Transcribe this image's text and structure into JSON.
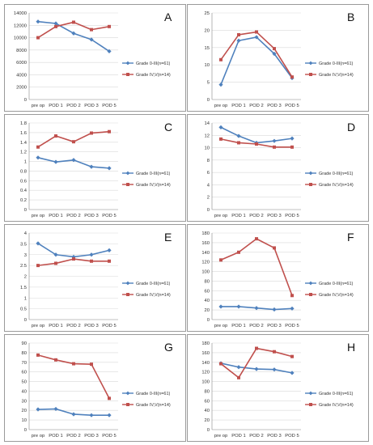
{
  "colors": {
    "series1": "#4f81bd",
    "series2": "#c0504d",
    "grid": "#d9d9d9",
    "axis": "#868686"
  },
  "chart_data": [
    {
      "type": "line",
      "panel_label": "A",
      "categories": [
        "pre op",
        "POD 1",
        "POD 2",
        "POD 3",
        "POD 5"
      ],
      "ylim": [
        0,
        14000
      ],
      "yticks": [
        0,
        2000,
        4000,
        6000,
        8000,
        10000,
        12000,
        14000
      ],
      "legend_position": "right",
      "grid": true,
      "series": [
        {
          "name": "Grade 0-III(n=61)",
          "values": [
            12600,
            12300,
            10700,
            9700,
            7800
          ]
        },
        {
          "name": "Grade IV,V(n=14)",
          "values": [
            10000,
            11800,
            12500,
            11300,
            11800
          ]
        }
      ]
    },
    {
      "type": "line",
      "panel_label": "B",
      "categories": [
        "pre op",
        "POD 1",
        "POD 2",
        "POD 3",
        "POD 5"
      ],
      "ylim": [
        0,
        25
      ],
      "yticks": [
        0,
        5,
        10,
        15,
        20,
        25
      ],
      "legend_position": "right",
      "grid": true,
      "series": [
        {
          "name": "Grade 0-III(n=61)",
          "values": [
            4.3,
            17.0,
            18.0,
            13.2,
            6.2
          ]
        },
        {
          "name": "Grade IV,V(n=14)",
          "values": [
            11.5,
            18.7,
            19.5,
            14.7,
            6.5
          ]
        }
      ]
    },
    {
      "type": "line",
      "panel_label": "C",
      "categories": [
        "pre op",
        "POD 1",
        "POD 2",
        "POD 3",
        "POD 5"
      ],
      "ylim": [
        0,
        1.8
      ],
      "yticks": [
        0,
        0.2,
        0.4,
        0.6,
        0.8,
        1,
        1.2,
        1.4,
        1.6,
        1.8
      ],
      "legend_position": "right",
      "grid": true,
      "series": [
        {
          "name": "Grade 0-III(n=61)",
          "values": [
            1.08,
            0.99,
            1.03,
            0.89,
            0.86
          ]
        },
        {
          "name": "Grade IV,V(n=14)",
          "values": [
            1.3,
            1.53,
            1.41,
            1.59,
            1.62
          ]
        }
      ]
    },
    {
      "type": "line",
      "panel_label": "D",
      "categories": [
        "pre op",
        "POD 1",
        "POD 2",
        "POD 3",
        "POD 5"
      ],
      "ylim": [
        0,
        14
      ],
      "yticks": [
        0,
        2,
        4,
        6,
        8,
        10,
        12,
        14
      ],
      "legend_position": "right",
      "grid": true,
      "series": [
        {
          "name": "Grade 0-III(n=61)",
          "values": [
            13.3,
            11.9,
            10.8,
            11.1,
            11.5
          ]
        },
        {
          "name": "Grade IV,V(n=14)",
          "values": [
            11.4,
            10.8,
            10.6,
            10.1,
            10.1
          ]
        }
      ]
    },
    {
      "type": "line",
      "panel_label": "E",
      "categories": [
        "pre op",
        "POD 1",
        "POD 2",
        "POD 3",
        "POD 5"
      ],
      "ylim": [
        0,
        4
      ],
      "yticks": [
        0,
        0.5,
        1,
        1.5,
        2,
        2.5,
        3,
        3.5,
        4
      ],
      "legend_position": "right",
      "grid": true,
      "series": [
        {
          "name": "Grade 0-III(n=61)",
          "values": [
            3.52,
            3.0,
            2.9,
            3.0,
            3.2
          ]
        },
        {
          "name": "Grade IV,V(n=14)",
          "values": [
            2.5,
            2.6,
            2.8,
            2.7,
            2.7
          ]
        }
      ]
    },
    {
      "type": "line",
      "panel_label": "F",
      "categories": [
        "pre op",
        "POD 1",
        "POD 2",
        "POD 3",
        "POD 5"
      ],
      "ylim": [
        0,
        180
      ],
      "yticks": [
        0,
        20,
        40,
        60,
        80,
        100,
        120,
        140,
        160,
        180
      ],
      "legend_position": "right",
      "grid": true,
      "series": [
        {
          "name": "Grade 0-III(n=61)",
          "values": [
            27,
            27,
            24,
            21,
            23
          ]
        },
        {
          "name": "Grade IV,V(n=14)",
          "values": [
            124,
            140,
            168,
            149,
            50
          ]
        }
      ]
    },
    {
      "type": "line",
      "panel_label": "G",
      "categories": [
        "pre op",
        "POD 1",
        "POD 2",
        "POD 3",
        "POD 5"
      ],
      "ylim": [
        0,
        90
      ],
      "yticks": [
        0,
        10,
        20,
        30,
        40,
        50,
        60,
        70,
        80,
        90
      ],
      "legend_position": "right",
      "grid": true,
      "series": [
        {
          "name": "Grade 0-III(n=61)",
          "values": [
            21,
            21.5,
            16,
            15,
            15
          ]
        },
        {
          "name": "Grade IV,V(n=14)",
          "values": [
            77.5,
            72.5,
            68.5,
            68,
            32.5
          ]
        }
      ]
    },
    {
      "type": "line",
      "panel_label": "H",
      "categories": [
        "pre op",
        "POD 1",
        "POD 2",
        "POD 3",
        "POD 5"
      ],
      "ylim": [
        0,
        180
      ],
      "yticks": [
        0,
        20,
        40,
        60,
        80,
        100,
        120,
        140,
        160,
        180
      ],
      "legend_position": "right",
      "grid": true,
      "series": [
        {
          "name": "Grade 0-III(n=61)",
          "values": [
            138,
            130,
            126,
            125,
            118
          ]
        },
        {
          "name": "Grade IV,V(n=14)",
          "values": [
            137,
            108,
            169,
            162,
            152
          ]
        }
      ]
    }
  ]
}
